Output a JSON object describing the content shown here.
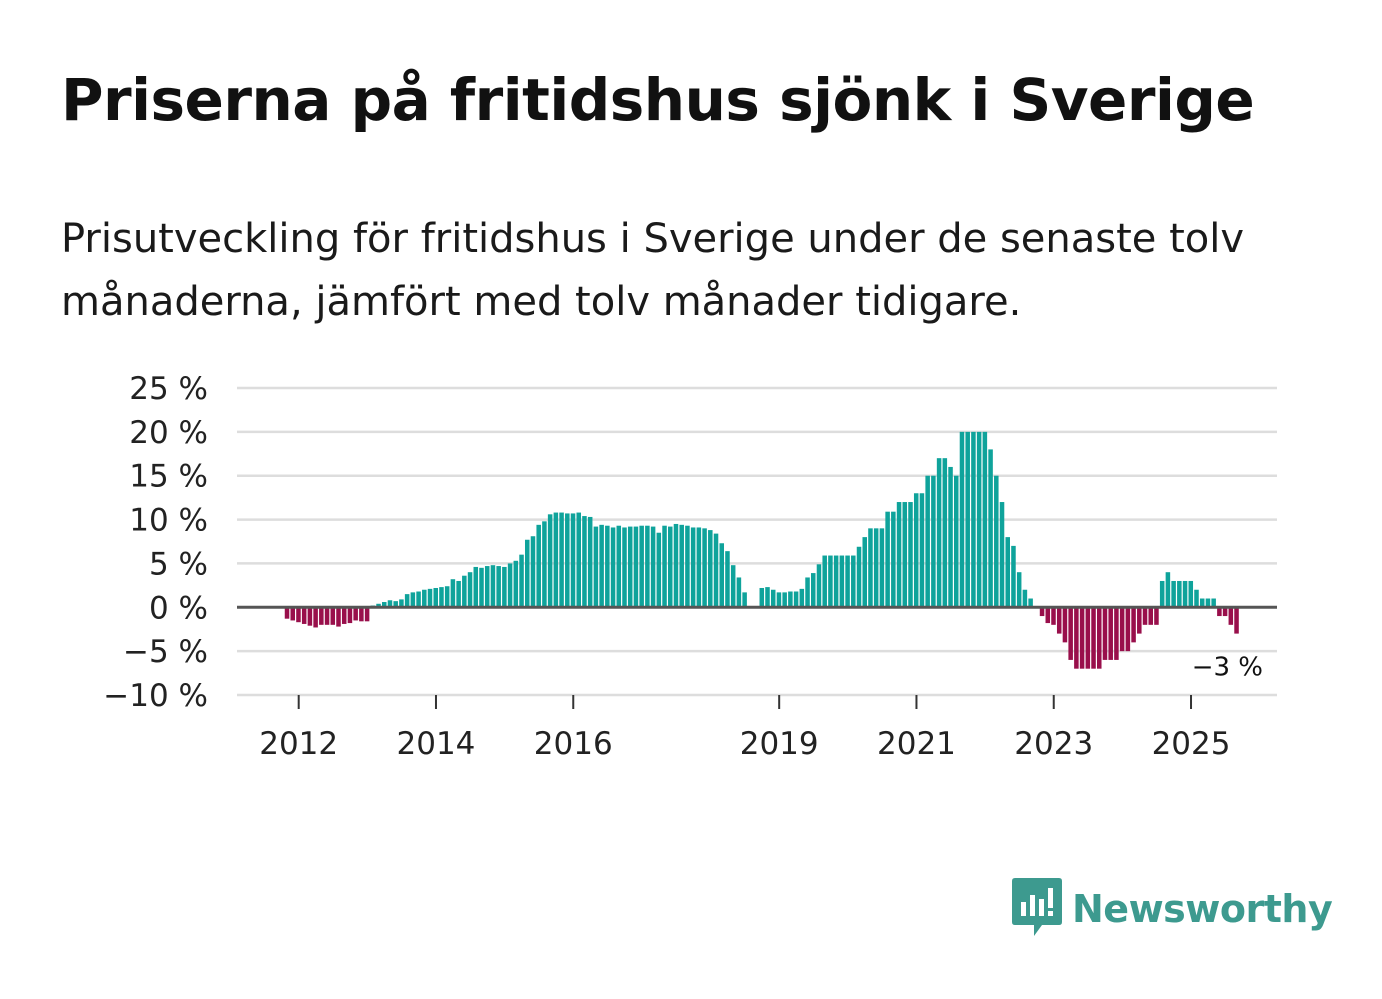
{
  "title": "Priserna på fritidshus sjönk i Sverige",
  "subtitle": "Prisutveckling för fritidshus i Sverige under de senaste tolv månaderna, jämfört med tolv månader tidigare.",
  "brand": {
    "name": "Newsworthy",
    "icon": "newsworthy-logo-icon"
  },
  "colors": {
    "positive": "#0fa39b",
    "negative": "#990f4b",
    "grid": "#dddddd",
    "zero": "#555555",
    "brand": "#3d9a8f"
  },
  "chart_data": {
    "type": "bar",
    "title": "Priserna på fritidshus sjönk i Sverige",
    "ylabel": "",
    "xlabel": "",
    "unit": "%",
    "ylim": [
      -10,
      25
    ],
    "yticks": [
      25,
      20,
      15,
      10,
      5,
      0,
      -5,
      -10
    ],
    "ytick_labels": [
      "25 %",
      "20 %",
      "15 %",
      "10 %",
      "5 %",
      "0 %",
      "−5 %",
      "−10 %"
    ],
    "xtick_labels": [
      "2012",
      "2014",
      "2016",
      "2019",
      "2021",
      "2023",
      "2025"
    ],
    "xtick_index": [
      10,
      34,
      58,
      94,
      118,
      142,
      166
    ],
    "last_value_label": "−3 %",
    "start": "2011-01",
    "values": [
      null,
      null,
      null,
      null,
      null,
      null,
      null,
      null,
      -1.3,
      -1.5,
      -1.7,
      -1.9,
      -2.1,
      -2.3,
      -2.0,
      -2.0,
      -2.0,
      -2.2,
      -1.9,
      -1.8,
      -1.5,
      -1.6,
      -1.6,
      0.2,
      0.4,
      0.6,
      0.8,
      0.7,
      0.9,
      1.5,
      1.7,
      1.8,
      2.0,
      2.1,
      2.2,
      2.3,
      2.4,
      3.2,
      3.0,
      3.6,
      4.0,
      4.6,
      4.5,
      4.7,
      4.8,
      4.7,
      4.6,
      5.0,
      5.3,
      6.0,
      7.7,
      8.1,
      9.4,
      9.8,
      10.6,
      10.8,
      10.8,
      10.7,
      10.7,
      10.8,
      10.4,
      10.3,
      9.2,
      9.4,
      9.3,
      9.1,
      9.3,
      9.1,
      9.2,
      9.2,
      9.3,
      9.3,
      9.2,
      8.5,
      9.3,
      9.2,
      9.5,
      9.4,
      9.3,
      9.1,
      9.1,
      9.0,
      8.8,
      8.4,
      7.3,
      6.4,
      4.8,
      3.4,
      1.7,
      null,
      null,
      2.2,
      2.3,
      2.0,
      1.7,
      1.7,
      1.8,
      1.8,
      2.1,
      3.4,
      3.9,
      4.9,
      5.9,
      5.9,
      5.9,
      5.9,
      5.9,
      5.9,
      6.9,
      8.0,
      9.0,
      9.0,
      9.0,
      10.9,
      10.9,
      12.0,
      12.0,
      12.0,
      13.0,
      13.0,
      15.0,
      15.0,
      17.0,
      17.0,
      16.0,
      15.0,
      20.0,
      20.0,
      20.0,
      20.0,
      20.0,
      18.0,
      15.0,
      12.0,
      8.0,
      7.0,
      4.0,
      2.0,
      1.0,
      null,
      -1.0,
      -1.8,
      -2.0,
      -3.0,
      -4.0,
      -6.0,
      -7.0,
      -7.0,
      -7.0,
      -7.0,
      -7.0,
      -6.0,
      -6.0,
      -6.0,
      -5.0,
      -5.0,
      -4.0,
      -3.0,
      -2.0,
      -2.0,
      -2.0,
      3.0,
      4.0,
      3.0,
      3.0,
      3.0,
      3.0,
      2.0,
      1.0,
      1.0,
      1.0,
      -1.0,
      -1.0,
      -2.0,
      -3.0
    ]
  }
}
